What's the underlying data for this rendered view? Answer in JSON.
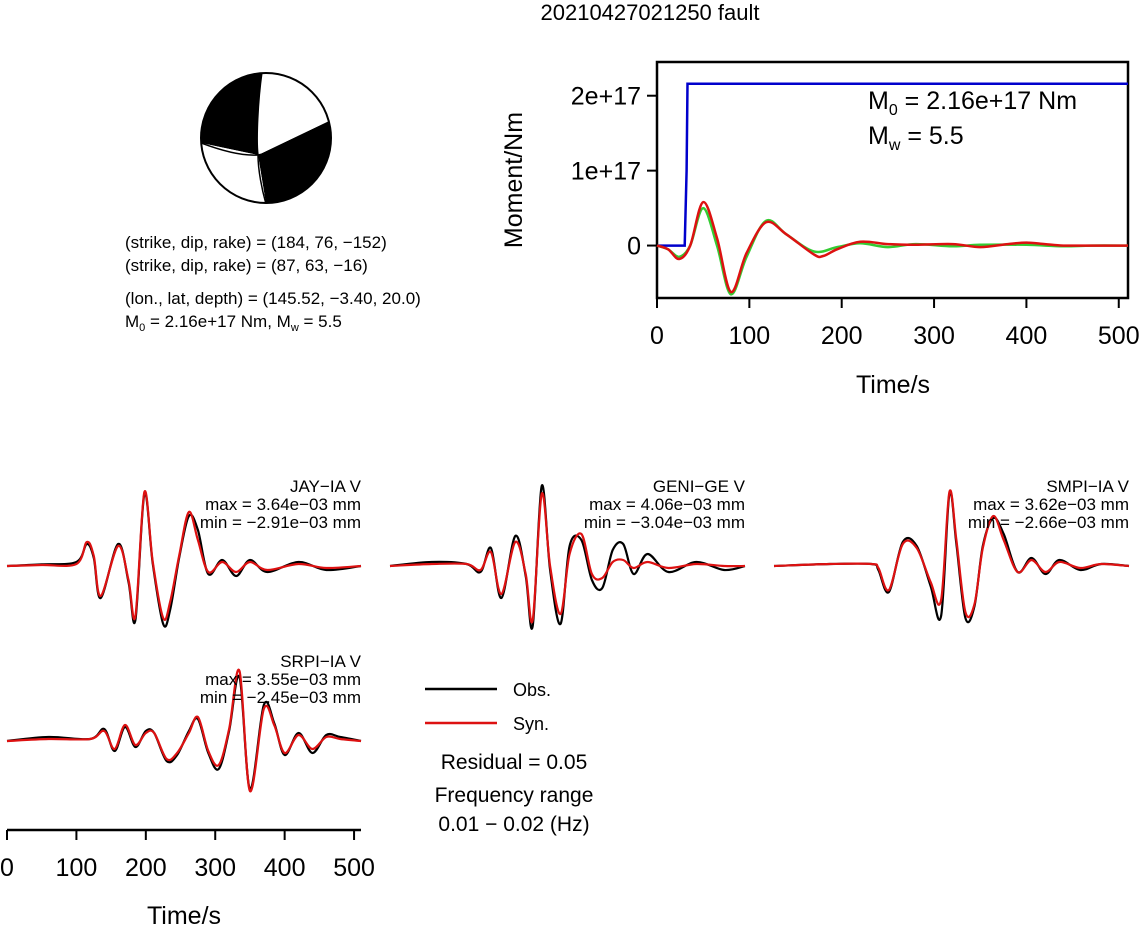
{
  "title": "20210427021250 fault",
  "mechanism": {
    "line1": "(strike, dip, rake) = (184, 76, −152)",
    "line2": "(strike, dip, rake) = (87, 63, −16)",
    "line3": "(lon., lat, depth) = (145.52, −3.40, 20.0)",
    "m0_prefix": "M",
    "m0_sub": "0",
    "m0_rest": " = 2.16e+17 Nm, M",
    "mw_sub": "w",
    "mw_rest": " = 5.5"
  },
  "legend": {
    "obs_label": "Obs.",
    "syn_label": "Syn.",
    "residual": "Residual = 0.05",
    "freq_title": "Frequency range",
    "freq_value": "0.01 − 0.02 (Hz)"
  },
  "colors": {
    "moment": "#0000cc",
    "syn": "#dd1111",
    "obs": "#000000",
    "stf_green": "#33cc33",
    "stf_red": "#dd1111"
  },
  "chart_data": [
    {
      "type": "line",
      "xlabel": "Time/s",
      "ylabel": "Moment/Nm",
      "xlim": [
        0,
        510
      ],
      "ylim": [
        -7e+16,
        2.45e+17
      ],
      "xticks": [
        0,
        100,
        200,
        300,
        400,
        500
      ],
      "xtick_labels": [
        "0",
        "100",
        "200",
        "300",
        "400",
        "500"
      ],
      "yticks": [
        0,
        1e+17,
        2e+17
      ],
      "ytick_labels": [
        "0",
        "1e+17",
        "2e+17"
      ],
      "annotation_m0": {
        "main": "M",
        "sub": "0",
        "rest": " = 2.16e+17 Nm"
      },
      "annotation_mw": {
        "main": "M",
        "sub": "w",
        "rest": " = 5.5"
      },
      "series": [
        {
          "x": [
            0,
            30,
            32,
            33,
            510
          ],
          "y": [
            0,
            0,
            1e+17,
            2.16e+17,
            2.16e+17
          ]
        },
        {
          "x": [
            0,
            12,
            24,
            36,
            50,
            65,
            80,
            97,
            118,
            140,
            170,
            195,
            220,
            250,
            280,
            320,
            350,
            400,
            440,
            470,
            510
          ],
          "y": [
            0,
            -5000000000000000.0,
            -1.5e+16,
            0,
            5e+16,
            0,
            -6.5e+16,
            -1.5e+16,
            3.3e+16,
            1.5e+16,
            -8000000000000000.0,
            -2000000000000000.0,
            3000000000000000.0,
            -2000000000000000.0,
            2000000000000000.0,
            -1000000000000000.0,
            1000000000000000.0,
            1000000000000000.0,
            -1000000000000000.0,
            0,
            0
          ]
        },
        {
          "x": [
            0,
            12,
            24,
            36,
            50,
            65,
            80,
            97,
            118,
            140,
            170,
            180,
            195,
            220,
            250,
            280,
            320,
            350,
            380,
            400,
            420,
            440,
            470,
            510
          ],
          "y": [
            0,
            -5000000000000000.0,
            -1.8e+16,
            0,
            5.8e+16,
            1e+16,
            -6.2e+16,
            -1e+16,
            3.1e+16,
            1.5e+16,
            -1.2e+16,
            -1.4e+16,
            -5000000000000000.0,
            5000000000000000.0,
            2000000000000000.0,
            1000000000000000.0,
            2000000000000000.0,
            -2000000000000000.0,
            2000000000000000.0,
            4000000000000000.0,
            2000000000000000.0,
            0,
            0,
            0
          ]
        }
      ]
    },
    {
      "type": "line",
      "station": "JAY−IA V",
      "max_label": "max = 3.64e−03 mm",
      "min_label": "min = −2.91e−03 mm",
      "xlim": [
        0,
        510
      ],
      "ylim": [
        -0.0032,
        0.0041
      ],
      "series": [
        {
          "name": "Obs.",
          "x": [
            0,
            50,
            100,
            115,
            125,
            135,
            160,
            175,
            185,
            198,
            210,
            225,
            235,
            248,
            262,
            275,
            290,
            310,
            330,
            350,
            375,
            420,
            460,
            510
          ],
          "y": [
            0,
            8e-05,
            0.0002,
            0.0011,
            0.0004,
            -0.0016,
            0.0011,
            -0.0008,
            -0.0027,
            0.0036,
            0.0001,
            -0.0029,
            -0.0022,
            0.0004,
            0.0025,
            0.0018,
            -0.0004,
            0.0003,
            -0.0005,
            0.0003,
            -0.0003,
            0.0002,
            -0.0002,
            0
          ]
        },
        {
          "name": "Syn.",
          "x": [
            0,
            50,
            100,
            115,
            125,
            135,
            160,
            175,
            185,
            198,
            210,
            225,
            235,
            248,
            262,
            275,
            290,
            310,
            330,
            350,
            375,
            420,
            460,
            510
          ],
          "y": [
            0,
            5e-05,
            0.0001,
            0.0012,
            0.0005,
            -0.0015,
            0.001,
            -0.0007,
            -0.0025,
            0.0037,
            0.0002,
            -0.0026,
            -0.0018,
            0.0005,
            0.0027,
            0.0013,
            -0.0003,
            0.0002,
            -0.0003,
            0.0002,
            -0.0002,
            0.0001,
            -0.0001,
            0
          ]
        }
      ]
    },
    {
      "type": "line",
      "station": "GENI−GE V",
      "max_label": "max = 4.06e−03 mm",
      "min_label": "min = −3.04e−03 mm",
      "xlim": [
        0,
        510
      ],
      "ylim": [
        -0.0032,
        0.0041
      ],
      "series": [
        {
          "name": "Obs.",
          "x": [
            0,
            60,
            110,
            130,
            145,
            160,
            180,
            195,
            205,
            218,
            230,
            245,
            258,
            275,
            290,
            305,
            320,
            335,
            350,
            370,
            400,
            440,
            480,
            510
          ],
          "y": [
            0,
            0.0002,
            0.0001,
            -0.0003,
            0.0009,
            -0.0016,
            0.0015,
            -0.0005,
            -0.003,
            0.004,
            -0.0002,
            -0.0029,
            0.001,
            0.0013,
            -0.0007,
            -0.0011,
            0.0008,
            0.0011,
            -0.0004,
            0.0006,
            -0.0003,
            0.0002,
            -0.0002,
            0
          ]
        },
        {
          "name": "Syn.",
          "x": [
            0,
            60,
            110,
            130,
            145,
            160,
            180,
            195,
            205,
            218,
            230,
            245,
            258,
            275,
            290,
            305,
            320,
            335,
            350,
            370,
            400,
            440,
            480,
            510
          ],
          "y": [
            0,
            0.0001,
            0.0001,
            -0.0002,
            0.0007,
            -0.0014,
            0.0012,
            -0.0004,
            -0.0027,
            0.0036,
            0.0,
            -0.0024,
            0.0006,
            0.0016,
            -0.0004,
            -0.0006,
            0.0002,
            0.0003,
            -0.0001,
            0.0002,
            -0.0001,
            0.0001,
            0,
            0
          ]
        }
      ]
    },
    {
      "type": "line",
      "station": "SMPI−IA V",
      "max_label": "max = 3.62e−03 mm",
      "min_label": "min = −2.66e−03 mm",
      "xlim": [
        0,
        510
      ],
      "ylim": [
        -0.0032,
        0.0041
      ],
      "series": [
        {
          "name": "Obs.",
          "x": [
            0,
            80,
            140,
            150,
            165,
            185,
            205,
            225,
            240,
            252,
            262,
            275,
            288,
            300,
            315,
            330,
            350,
            370,
            390,
            410,
            440,
            470,
            510
          ],
          "y": [
            0,
            0.0001,
            0.0001,
            -0.0002,
            -0.0013,
            0.0012,
            0.001,
            -0.001,
            -0.0025,
            0.0036,
            0.0011,
            -0.0026,
            -0.002,
            0.001,
            0.0024,
            0.0016,
            -0.0003,
            0.0004,
            -0.0004,
            0.0003,
            -0.0002,
            0.0001,
            0
          ]
        },
        {
          "name": "Syn.",
          "x": [
            0,
            80,
            140,
            150,
            165,
            185,
            205,
            225,
            240,
            252,
            262,
            275,
            288,
            300,
            315,
            330,
            350,
            370,
            390,
            410,
            440,
            470,
            510
          ],
          "y": [
            0,
            0.0001,
            0.0001,
            -0.0001,
            -0.0012,
            0.0011,
            0.0009,
            -0.0008,
            -0.0017,
            0.0037,
            0.0013,
            -0.0023,
            -0.0019,
            0.0009,
            0.0025,
            0.0013,
            -0.0003,
            0.0003,
            -0.0003,
            0.0002,
            -0.0001,
            0.0001,
            0
          ]
        }
      ]
    },
    {
      "type": "line",
      "station": "SRPI−IA V",
      "max_label": "max = 3.55e−03 mm",
      "min_label": "min = −2.45e−03 mm",
      "xlabel": "Time/s",
      "xlim": [
        0,
        510
      ],
      "ylim": [
        -0.0032,
        0.0041
      ],
      "xticks": [
        0,
        100,
        200,
        300,
        400,
        500
      ],
      "xtick_labels": [
        "0",
        "100",
        "200",
        "300",
        "400",
        "500"
      ],
      "series": [
        {
          "name": "Obs.",
          "x": [
            0,
            60,
            120,
            140,
            155,
            170,
            185,
            200,
            212,
            230,
            245,
            262,
            275,
            290,
            305,
            320,
            335,
            350,
            370,
            385,
            400,
            420,
            440,
            460,
            480,
            510
          ],
          "y": [
            0,
            0.0002,
            0.0001,
            0.0006,
            -0.0005,
            0.0007,
            -0.0003,
            0.0005,
            0.0004,
            -0.001,
            -0.0007,
            0.0005,
            0.0011,
            -0.0006,
            -0.0014,
            0.0005,
            0.0032,
            -0.0024,
            0.0018,
            0.0009,
            -0.0007,
            0.0004,
            -0.0006,
            0.0003,
            0.0002,
            0
          ]
        },
        {
          "name": "Syn.",
          "x": [
            0,
            60,
            120,
            140,
            155,
            170,
            185,
            200,
            212,
            230,
            245,
            262,
            275,
            290,
            305,
            320,
            335,
            350,
            370,
            385,
            400,
            420,
            440,
            460,
            480,
            510
          ],
          "y": [
            0,
            0.0001,
            0.0001,
            0.0005,
            -0.0004,
            0.0008,
            -0.0002,
            0.0004,
            0.0004,
            -0.0009,
            -0.0006,
            0.0004,
            0.0012,
            -0.0005,
            -0.0012,
            0.0006,
            0.0035,
            -0.0025,
            0.0016,
            0.0008,
            -0.0006,
            0.0003,
            -0.0004,
            0.0002,
            0.0001,
            0
          ]
        }
      ]
    }
  ]
}
